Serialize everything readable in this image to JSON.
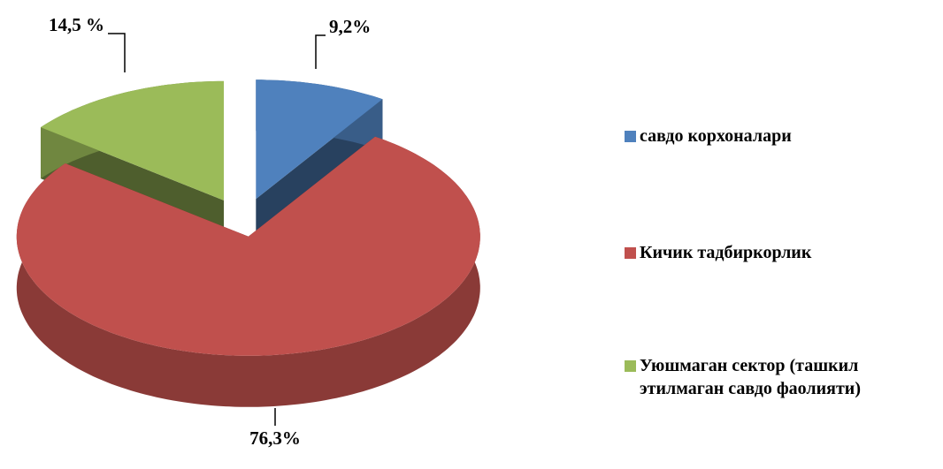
{
  "chart_data": {
    "type": "pie",
    "categories": [
      "савдо корхоналари",
      "Кичик тадбиркорлик",
      "Уюшмаган сектор (ташкил этилмаган савдо фаолияти)"
    ],
    "values": [
      9.2,
      76.3,
      14.5
    ],
    "value_labels": [
      "9,2%",
      "76,3%",
      "14,5 %"
    ],
    "colors": [
      "#4f81bd",
      "#c0504d",
      "#9bbb59"
    ],
    "legend": "right"
  }
}
